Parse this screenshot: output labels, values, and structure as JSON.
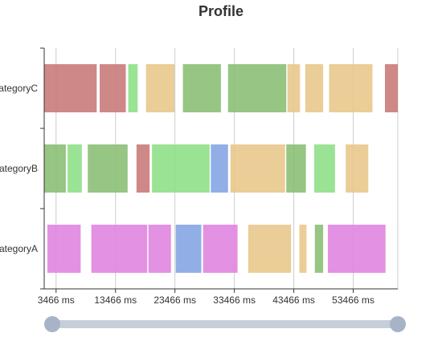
{
  "chart_data": {
    "type": "bar",
    "title": "Profile",
    "categories": [
      "categoryA",
      "categoryB",
      "categoryC"
    ],
    "category_tick_labels": [
      "ategoryA",
      "ategoryB",
      "ategoryC"
    ],
    "x_ticks": [
      "3466 ms",
      "13466 ms",
      "23466 ms",
      "33466 ms",
      "43466 ms",
      "53466 ms"
    ],
    "x_tick_values": [
      3466,
      13466,
      23466,
      33466,
      43466,
      53466
    ],
    "xlim": [
      1466,
      60966
    ],
    "grid": true,
    "series": [
      {
        "category": "categoryA",
        "segments": [
          {
            "start": 2000,
            "end": 7600,
            "color": "#e085e0"
          },
          {
            "start": 9400,
            "end": 18800,
            "color": "#e085e0"
          },
          {
            "start": 19000,
            "end": 22800,
            "color": "#e085e0"
          },
          {
            "start": 23600,
            "end": 27900,
            "color": "#85a6e3"
          },
          {
            "start": 28200,
            "end": 34000,
            "color": "#e085e0"
          },
          {
            "start": 35800,
            "end": 43000,
            "color": "#e8c88c"
          },
          {
            "start": 44400,
            "end": 45600,
            "color": "#e8c88c"
          },
          {
            "start": 47000,
            "end": 48400,
            "color": "#8bbf77"
          },
          {
            "start": 49200,
            "end": 58900,
            "color": "#e085e0"
          }
        ]
      },
      {
        "category": "categoryB",
        "segments": [
          {
            "start": 1466,
            "end": 5100,
            "color": "#8bbf77"
          },
          {
            "start": 5400,
            "end": 7800,
            "color": "#8fe088"
          },
          {
            "start": 8800,
            "end": 15500,
            "color": "#8bbf77"
          },
          {
            "start": 17000,
            "end": 19200,
            "color": "#c97b7b"
          },
          {
            "start": 19600,
            "end": 29300,
            "color": "#8fe088"
          },
          {
            "start": 29500,
            "end": 32400,
            "color": "#85a6e3"
          },
          {
            "start": 32800,
            "end": 42000,
            "color": "#e8c88c"
          },
          {
            "start": 42200,
            "end": 45500,
            "color": "#8bbf77"
          },
          {
            "start": 46900,
            "end": 50400,
            "color": "#8fe088"
          },
          {
            "start": 52200,
            "end": 56000,
            "color": "#e8c88c"
          }
        ]
      },
      {
        "category": "categoryC",
        "segments": [
          {
            "start": 1466,
            "end": 10300,
            "color": "#c97b7b"
          },
          {
            "start": 10800,
            "end": 15200,
            "color": "#c97b7b"
          },
          {
            "start": 15600,
            "end": 17200,
            "color": "#8fe088"
          },
          {
            "start": 18600,
            "end": 23400,
            "color": "#e8c88c"
          },
          {
            "start": 24800,
            "end": 31200,
            "color": "#8bbf77"
          },
          {
            "start": 32400,
            "end": 42200,
            "color": "#8bbf77"
          },
          {
            "start": 42400,
            "end": 44500,
            "color": "#e8c88c"
          },
          {
            "start": 45400,
            "end": 48400,
            "color": "#e8c88c"
          },
          {
            "start": 49400,
            "end": 56700,
            "color": "#e8c88c"
          },
          {
            "start": 58800,
            "end": 60966,
            "color": "#c97b7b"
          }
        ]
      }
    ],
    "zoom_slider": {
      "start_fraction": 0,
      "end_fraction": 1
    }
  }
}
